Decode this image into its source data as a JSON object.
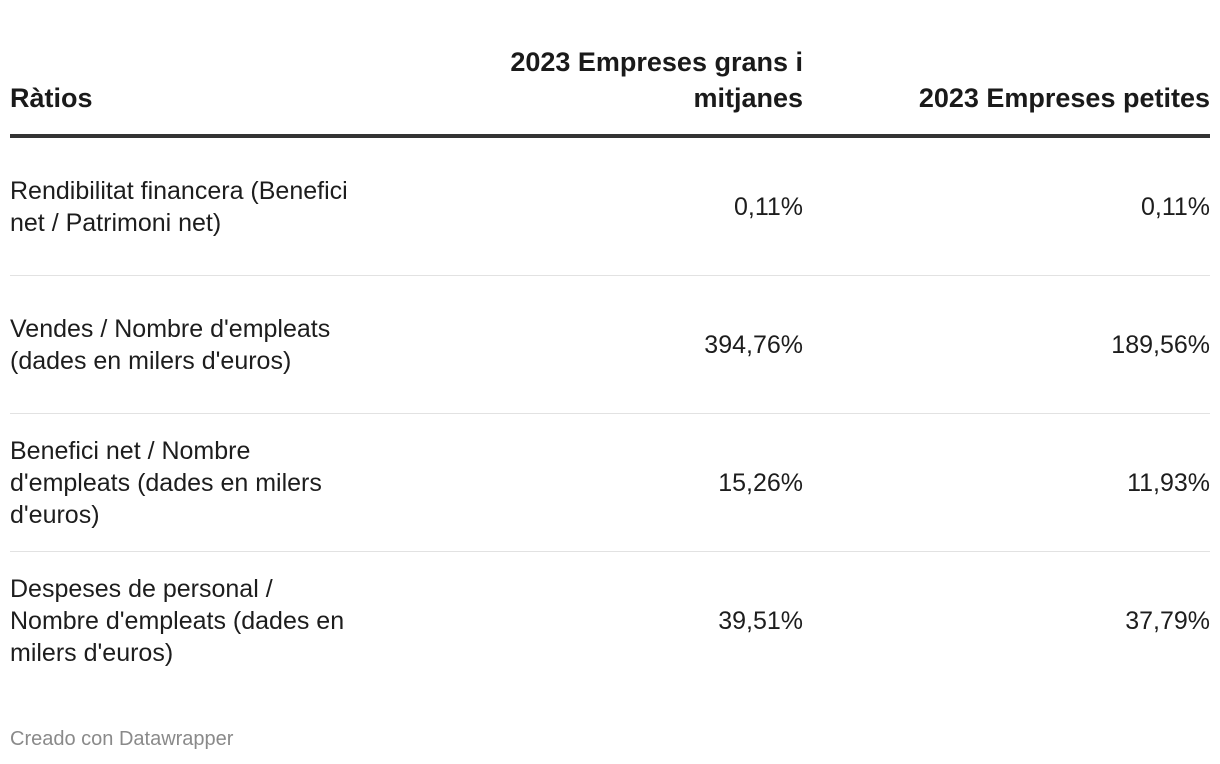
{
  "chart_data": {
    "type": "table",
    "columns": [
      "Ràtios",
      "2023 Empreses grans i mitjanes",
      "2023 Empreses petites"
    ],
    "rows": [
      {
        "label": "Rendibilitat financera (Benefici net / Patrimoni net)",
        "grans": "0,11%",
        "petites": "0,11%"
      },
      {
        "label": "Vendes / Nombre d'empleats (dades en milers d'euros)",
        "grans": "394,76%",
        "petites": "189,56%"
      },
      {
        "label": "Benefici net / Nombre d'empleats (dades en milers d'euros)",
        "grans": "15,26%",
        "petites": "11,93%"
      },
      {
        "label": "Despeses de personal / Nombre d'empleats (dades en milers d'euros)",
        "grans": "39,51%",
        "petites": "37,79%"
      }
    ]
  },
  "footer": "Creado con Datawrapper"
}
